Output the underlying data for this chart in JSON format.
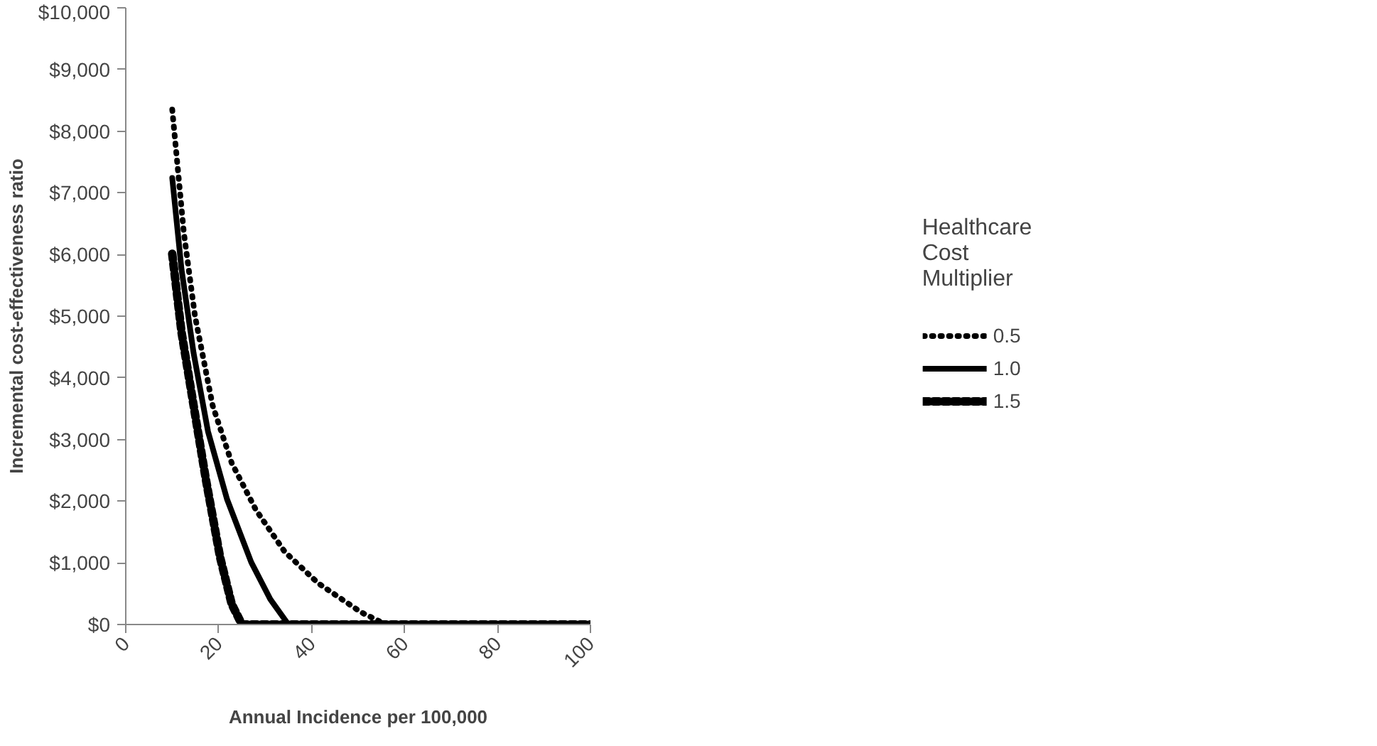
{
  "chart_data": {
    "type": "line",
    "xlabel": "Annual Incidence per 100,000",
    "ylabel": "Incremental cost-effectiveness ratio",
    "legend_title": "Healthcare Cost Multiplier",
    "legend": "right",
    "xlim": [
      0,
      100
    ],
    "xticks": [
      0,
      20,
      40,
      60,
      80,
      100
    ],
    "ylim": [
      0,
      10000
    ],
    "yticks": [
      {
        "value": 0,
        "label": "$0"
      },
      {
        "value": 1000,
        "label": "$1,000"
      },
      {
        "value": 2000,
        "label": "$2,000"
      },
      {
        "value": 3000,
        "label": "$3,000"
      },
      {
        "value": 4000,
        "label": "$4,000"
      },
      {
        "value": 5000,
        "label": "$5,000"
      },
      {
        "value": 6000,
        "label": "$6,000"
      },
      {
        "value": 7000,
        "label": "$7,000"
      },
      {
        "value": 8000,
        "label": "$8,000"
      },
      {
        "value": 9000,
        "label": "$9,000"
      },
      {
        "value": 10000,
        "label": "$10,000"
      }
    ],
    "grid": false,
    "series": [
      {
        "name": "0.5",
        "color": "#000000",
        "line_style": "dotted",
        "x": [
          10,
          12.5,
          14.9,
          18.7,
          22.8,
          28,
          34.2,
          41.4,
          50.6,
          56,
          100
        ],
        "values": [
          8350,
          6350,
          5000,
          3550,
          2620,
          1860,
          1180,
          670,
          200,
          0,
          0
        ]
      },
      {
        "name": "1.0",
        "color": "#000000",
        "line_style": "solid",
        "x": [
          10,
          12,
          14.6,
          17.7,
          21.8,
          27,
          31.1,
          35,
          100
        ],
        "values": [
          7240,
          5760,
          4400,
          3130,
          2030,
          1010,
          410,
          0,
          0
        ]
      },
      {
        "name": "1.5",
        "color": "#000000",
        "line_style": "dashed",
        "x": [
          10,
          12,
          14.6,
          17.2,
          20.3,
          22.8,
          25,
          100
        ],
        "values": [
          6010,
          4740,
          3550,
          2370,
          1090,
          330,
          0,
          0
        ]
      }
    ]
  }
}
